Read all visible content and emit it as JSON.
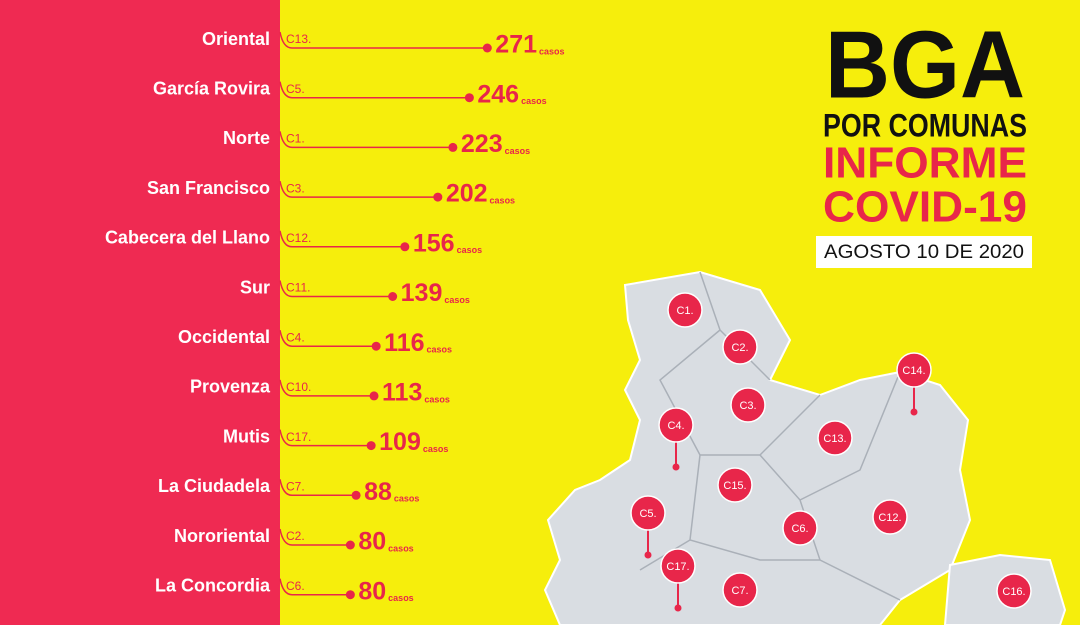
{
  "chart_data": {
    "type": "lollipop",
    "categories": [
      "Oriental",
      "García Rovira",
      "Norte",
      "San Francisco",
      "Cabecera del Llano",
      "Sur",
      "Occidental",
      "Provenza",
      "Mutis",
      "La Ciudadela",
      "Nororiental",
      "La Concordia"
    ],
    "codes": [
      "C13.",
      "C5.",
      "C1.",
      "C3.",
      "C12.",
      "C11.",
      "C4.",
      "C10.",
      "C17.",
      "C7.",
      "C2.",
      "C6."
    ],
    "values": [
      271,
      246,
      223,
      202,
      156,
      139,
      116,
      113,
      109,
      88,
      80,
      80
    ],
    "unit_label": "casos",
    "color": "#e8264a"
  },
  "header": {
    "title": "BGA",
    "subtitle": "POR COMUNAS",
    "report": "INFORME",
    "topic": "COVID-19",
    "date": "AGOSTO 10 DE 2020"
  },
  "map": {
    "labels": [
      "C1.",
      "C2.",
      "C3.",
      "C4.",
      "C14.",
      "C13.",
      "C15.",
      "C6.",
      "C12.",
      "C5.",
      "C17.",
      "C7.",
      "C16."
    ]
  }
}
